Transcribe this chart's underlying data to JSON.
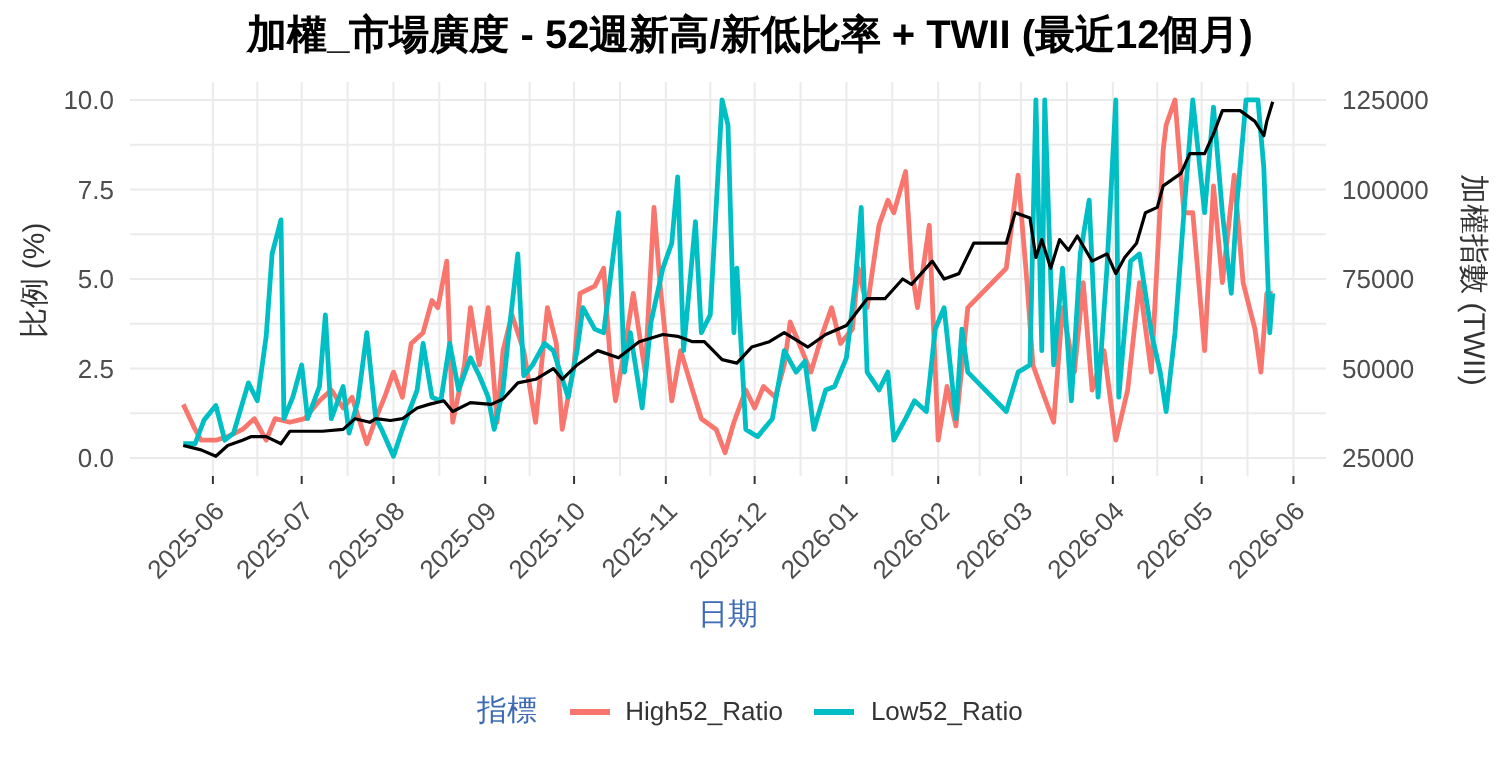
{
  "chart_data": {
    "type": "line",
    "title": "加權_市場廣度 - 52週新高/新低比率 + TWII (最近12個月)",
    "xlabel": "日期",
    "ylabel": "比例 (%)",
    "y2label": "加權指數 (TWII)",
    "legend_title": "指標",
    "legend": "bottom",
    "grid": true,
    "marker": "none",
    "line_style": "solid",
    "xlim": [
      "2025-05-04",
      "2026-06-12"
    ],
    "xticks": [
      "2025-06",
      "2025-07",
      "2025-08",
      "2025-09",
      "2025-10",
      "2025-11",
      "2025-12",
      "2026-01",
      "2026-02",
      "2026-03",
      "2026-04",
      "2026-05",
      "2026-06"
    ],
    "ylim": [
      -0.5,
      10.5
    ],
    "yticks": [
      {
        "value": 0,
        "label": "0.0"
      },
      2.5,
      {
        "value": 5,
        "label": "5.0"
      },
      7.5,
      {
        "value": 10,
        "label": "10.0"
      }
    ],
    "y2lim": [
      20000,
      130000
    ],
    "y2ticks": [
      25000,
      50000,
      75000,
      100000,
      125000
    ],
    "series": [
      {
        "name": "High52_Ratio",
        "color": "#f8766d",
        "x": [
          "2025-05-22",
          "2025-05-26",
          "2025-05-28",
          "2025-06-02",
          "2025-06-06",
          "2025-06-11",
          "2025-06-15",
          "2025-06-19",
          "2025-06-22",
          "2025-06-27",
          "2025-07-02",
          "2025-07-07",
          "2025-07-11",
          "2025-07-15",
          "2025-07-18",
          "2025-07-23",
          "2025-07-26",
          "2025-07-29",
          "2025-08-01",
          "2025-08-04",
          "2025-08-07",
          "2025-08-11",
          "2025-08-14",
          "2025-08-16",
          "2025-08-19",
          "2025-08-21",
          "2025-08-25",
          "2025-08-27",
          "2025-08-30",
          "2025-09-02",
          "2025-09-05",
          "2025-09-07",
          "2025-09-10",
          "2025-09-14",
          "2025-09-18",
          "2025-09-22",
          "2025-09-25",
          "2025-09-27",
          "2025-10-01",
          "2025-10-03",
          "2025-10-08",
          "2025-10-11",
          "2025-10-13",
          "2025-10-15",
          "2025-10-18",
          "2025-10-21",
          "2025-10-25",
          "2025-10-28",
          "2025-10-30",
          "2025-11-03",
          "2025-11-06",
          "2025-11-10",
          "2025-11-13",
          "2025-11-18",
          "2025-11-21",
          "2025-11-24",
          "2025-11-28",
          "2025-12-01",
          "2025-12-04",
          "2025-12-08",
          "2025-12-11",
          "2025-12-13",
          "2025-12-17",
          "2025-12-20",
          "2025-12-24",
          "2025-12-27",
          "2025-12-30",
          "2026-01-03",
          "2026-01-05",
          "2026-01-08",
          "2026-01-12",
          "2026-01-15",
          "2026-01-17",
          "2026-01-21",
          "2026-01-23",
          "2026-01-25",
          "2026-01-29",
          "2026-02-01",
          "2026-02-04",
          "2026-02-07",
          "2026-02-11",
          "2026-02-24",
          "2026-02-28",
          "2026-03-03",
          "2026-03-05",
          "2026-03-08",
          "2026-03-12",
          "2026-03-15",
          "2026-03-19",
          "2026-03-22",
          "2026-03-25",
          "2026-03-29",
          "2026-04-02",
          "2026-04-06",
          "2026-04-10",
          "2026-04-14",
          "2026-04-18",
          "2026-04-19",
          "2026-04-22",
          "2026-04-25",
          "2026-04-28",
          "2026-05-02",
          "2026-05-05",
          "2026-05-08",
          "2026-05-12",
          "2026-05-15",
          "2026-05-19",
          "2026-05-21",
          "2026-05-23",
          "2026-05-25"
        ],
        "values": [
          1.5,
          0.8,
          0.5,
          0.5,
          0.6,
          0.8,
          1.1,
          0.5,
          1.1,
          1.0,
          1.1,
          1.6,
          1.9,
          1.4,
          1.7,
          0.4,
          1.1,
          1.7,
          2.4,
          1.7,
          3.2,
          3.5,
          4.4,
          4.2,
          5.5,
          1.0,
          2.6,
          4.2,
          2.6,
          4.2,
          1.0,
          3.0,
          4.0,
          3.0,
          1.0,
          4.2,
          3.2,
          0.8,
          2.6,
          4.6,
          4.8,
          5.3,
          3.0,
          1.6,
          3.0,
          4.6,
          2.4,
          7.0,
          4.9,
          1.6,
          3.0,
          1.9,
          1.1,
          0.8,
          0.15,
          1.0,
          1.9,
          1.4,
          2.0,
          1.7,
          2.6,
          3.8,
          3.0,
          2.4,
          3.5,
          4.2,
          3.2,
          3.6,
          5.3,
          4.2,
          6.5,
          7.2,
          6.85,
          8.0,
          5.3,
          4.2,
          6.5,
          0.5,
          2.0,
          0.9,
          4.2,
          5.3,
          7.9,
          4.9,
          2.6,
          1.9,
          1.0,
          4.2,
          2.4,
          4.9,
          1.9,
          3.0,
          0.5,
          1.9,
          4.9,
          2.4,
          8.6,
          9.3,
          10.0,
          6.85,
          6.85,
          3.0,
          7.6,
          4.9,
          7.9,
          4.9,
          3.6,
          2.4,
          4.6,
          4.6
        ]
      },
      {
        "name": "Low52_Ratio",
        "color": "#00bfc4",
        "x": [
          "2025-05-22",
          "2025-05-26",
          "2025-05-29",
          "2025-06-02",
          "2025-06-05",
          "2025-06-08",
          "2025-06-13",
          "2025-06-16",
          "2025-06-19",
          "2025-06-21",
          "2025-06-24",
          "2025-06-25",
          "2025-06-28",
          "2025-07-01",
          "2025-07-03",
          "2025-07-07",
          "2025-07-09",
          "2025-07-11",
          "2025-07-15",
          "2025-07-17",
          "2025-07-20",
          "2025-07-23",
          "2025-07-26",
          "2025-07-28",
          "2025-08-01",
          "2025-08-04",
          "2025-08-09",
          "2025-08-11",
          "2025-08-14",
          "2025-08-17",
          "2025-08-20",
          "2025-08-23",
          "2025-08-27",
          "2025-08-30",
          "2025-09-02",
          "2025-09-04",
          "2025-09-07",
          "2025-09-09",
          "2025-09-12",
          "2025-09-14",
          "2025-09-17",
          "2025-09-21",
          "2025-09-24",
          "2025-09-29",
          "2025-10-02",
          "2025-10-04",
          "2025-10-08",
          "2025-10-11",
          "2025-10-16",
          "2025-10-18",
          "2025-10-20",
          "2025-10-24",
          "2025-10-27",
          "2025-10-31",
          "2025-11-03",
          "2025-11-05",
          "2025-11-07",
          "2025-11-11",
          "2025-11-13",
          "2025-11-16",
          "2025-11-20",
          "2025-11-22",
          "2025-11-24",
          "2025-11-25",
          "2025-11-28",
          "2025-12-02",
          "2025-12-07",
          "2025-12-11",
          "2025-12-15",
          "2025-12-18",
          "2025-12-21",
          "2025-12-25",
          "2025-12-28",
          "2026-01-01",
          "2026-01-04",
          "2026-01-06",
          "2026-01-08",
          "2026-01-12",
          "2026-01-15",
          "2026-01-17",
          "2026-01-21",
          "2026-01-24",
          "2026-01-28",
          "2026-01-31",
          "2026-02-03",
          "2026-02-07",
          "2026-02-09",
          "2026-02-11",
          "2026-02-24",
          "2026-02-28",
          "2026-03-04",
          "2026-03-06",
          "2026-03-08",
          "2026-03-09",
          "2026-03-12",
          "2026-03-15",
          "2026-03-18",
          "2026-03-21",
          "2026-03-24",
          "2026-03-27",
          "2026-03-30",
          "2026-04-02",
          "2026-04-03",
          "2026-04-07",
          "2026-04-10",
          "2026-04-14",
          "2026-04-17",
          "2026-04-19",
          "2026-04-22",
          "2026-04-25",
          "2026-04-28",
          "2026-05-02",
          "2026-05-05",
          "2026-05-08",
          "2026-05-11",
          "2026-05-13",
          "2026-05-16",
          "2026-05-20",
          "2026-05-22",
          "2026-05-24",
          "2026-05-25"
        ],
        "values": [
          0.4,
          0.4,
          1.06,
          1.47,
          0.5,
          0.7,
          2.1,
          1.6,
          3.4,
          5.7,
          6.65,
          1.1,
          1.7,
          2.6,
          1.1,
          2.0,
          4.0,
          1.1,
          2.0,
          0.7,
          1.6,
          3.5,
          1.1,
          0.8,
          0.05,
          0.8,
          1.9,
          3.2,
          1.7,
          1.6,
          3.2,
          1.9,
          2.8,
          2.3,
          1.7,
          0.8,
          1.9,
          3.5,
          5.7,
          2.3,
          2.6,
          3.2,
          3.0,
          1.7,
          3.0,
          4.2,
          3.6,
          3.5,
          6.85,
          2.4,
          3.5,
          1.4,
          3.8,
          5.3,
          6.0,
          7.85,
          3.0,
          6.6,
          3.5,
          4.0,
          10.0,
          9.3,
          3.5,
          5.3,
          0.8,
          0.6,
          1.1,
          3.0,
          2.4,
          2.7,
          0.8,
          1.9,
          2.0,
          2.8,
          4.9,
          7.0,
          2.4,
          1.9,
          2.4,
          0.5,
          1.1,
          1.6,
          1.3,
          3.6,
          4.2,
          1.1,
          3.6,
          2.4,
          1.3,
          2.4,
          2.6,
          10.0,
          3.0,
          10.0,
          2.6,
          5.3,
          1.6,
          5.7,
          7.2,
          1.7,
          5.3,
          10.0,
          1.7,
          5.5,
          5.7,
          3.5,
          2.4,
          1.3,
          3.5,
          6.85,
          10.0,
          6.85,
          9.8,
          6.85,
          4.6,
          7.2,
          10.0,
          10.0,
          8.1,
          3.5,
          4.6
        ]
      },
      {
        "color": "#000000",
        "axis": "y2",
        "x": [
          "2025-05-22",
          "2025-05-28",
          "2025-06-02",
          "2025-06-06",
          "2025-06-11",
          "2025-06-14",
          "2025-06-19",
          "2025-06-24",
          "2025-06-27",
          "2025-07-03",
          "2025-07-08",
          "2025-07-15",
          "2025-07-19",
          "2025-07-24",
          "2025-07-26",
          "2025-07-31",
          "2025-08-04",
          "2025-08-09",
          "2025-08-13",
          "2025-08-18",
          "2025-08-21",
          "2025-08-27",
          "2025-09-03",
          "2025-09-07",
          "2025-09-12",
          "2025-09-18",
          "2025-09-24",
          "2025-09-27",
          "2025-10-02",
          "2025-10-09",
          "2025-10-16",
          "2025-10-23",
          "2025-10-31",
          "2025-11-05",
          "2025-11-10",
          "2025-11-14",
          "2025-11-20",
          "2025-11-25",
          "2025-11-30",
          "2025-12-06",
          "2025-12-11",
          "2025-12-19",
          "2025-12-25",
          "2026-01-01",
          "2026-01-08",
          "2026-01-14",
          "2026-01-20",
          "2026-01-23",
          "2026-01-30",
          "2026-02-03",
          "2026-02-08",
          "2026-02-13",
          "2026-02-24",
          "2026-02-27",
          "2026-03-04",
          "2026-03-06",
          "2026-03-08",
          "2026-03-11",
          "2026-03-14",
          "2026-03-17",
          "2026-03-20",
          "2026-03-25",
          "2026-03-30",
          "2026-04-02",
          "2026-04-05",
          "2026-04-09",
          "2026-04-12",
          "2026-04-16",
          "2026-04-18",
          "2026-04-24",
          "2026-04-27",
          "2026-05-02",
          "2026-05-05",
          "2026-05-08",
          "2026-05-14",
          "2026-05-19",
          "2026-05-22",
          "2026-05-23",
          "2026-05-25"
        ],
        "values": [
          28500,
          27300,
          25500,
          28500,
          30000,
          31000,
          31000,
          29000,
          32500,
          32500,
          32500,
          33000,
          36000,
          35000,
          36000,
          35500,
          36000,
          39000,
          40000,
          41000,
          38000,
          40500,
          40000,
          41500,
          46000,
          47000,
          50000,
          47000,
          51000,
          55000,
          53000,
          57500,
          59500,
          59000,
          57500,
          57500,
          52500,
          51500,
          56000,
          57500,
          60000,
          56000,
          59500,
          62000,
          69500,
          69500,
          75000,
          73500,
          80000,
          75000,
          76500,
          85000,
          85000,
          93500,
          92000,
          81000,
          86000,
          78000,
          86000,
          83000,
          87000,
          80000,
          82000,
          76500,
          81000,
          85000,
          93500,
          95000,
          101000,
          104500,
          110000,
          110000,
          115500,
          122000,
          122000,
          119000,
          115000,
          119000,
          124500
        ]
      }
    ]
  }
}
